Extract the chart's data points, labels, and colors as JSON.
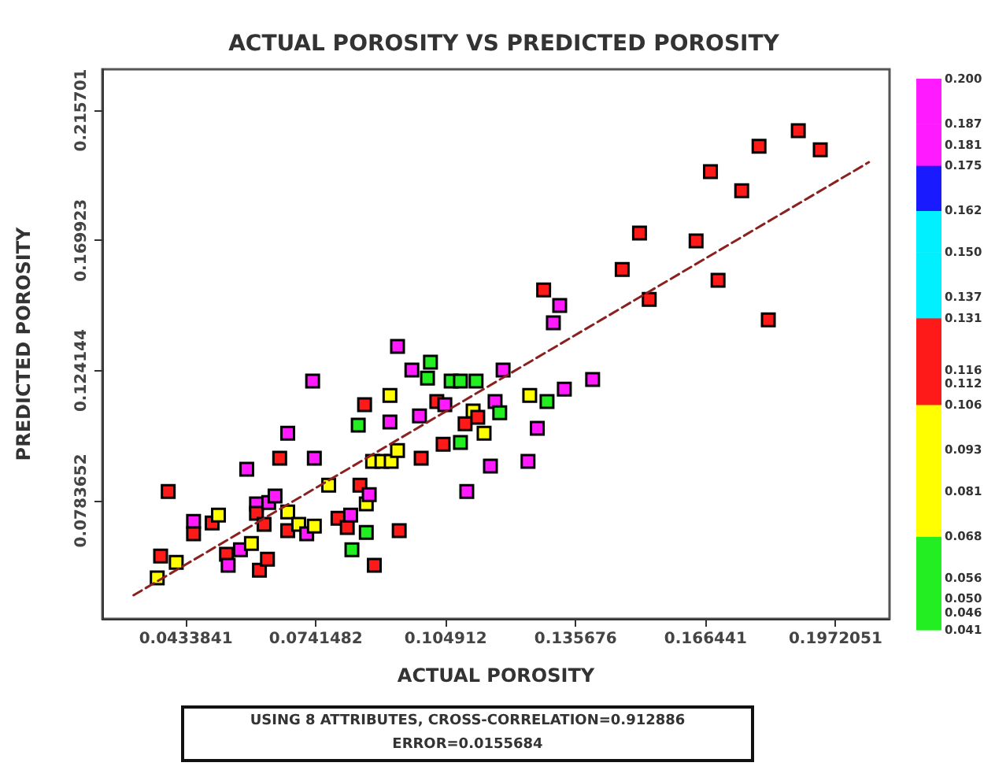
{
  "chart_data": {
    "type": "scatter",
    "title": "ACTUAL POROSITY VS PREDICTED POROSITY",
    "xlabel": "ACTUAL POROSITY",
    "ylabel": "PREDICTED POROSITY",
    "annotations": [
      "USING 8 ATTRIBUTES, CROSS-CORRELATION=0.912886",
      "ERROR=0.0155684"
    ],
    "xlim": [
      0.0236,
      0.21
    ],
    "xticks": [
      0.0433841,
      0.0741482,
      0.104912,
      0.135676,
      0.166441,
      0.1972051
    ],
    "ylim": [
      0.0368,
      0.2301
    ],
    "yticks": [
      0.0783652,
      0.124144,
      0.169923,
      0.215701
    ],
    "clim": [
      0.041,
      0.2
    ],
    "cticks": [
      0.041,
      0.046,
      {
        "value": 0.05,
        "label": "0.050"
      },
      0.056,
      0.068,
      0.081,
      0.093,
      0.106,
      0.112,
      0.116,
      0.131,
      0.137,
      {
        "value": 0.15,
        "label": "0.150"
      },
      0.162,
      0.175,
      0.181,
      0.187,
      {
        "value": 0.2,
        "label": "0.200"
      }
    ],
    "grid": false,
    "marker": "square",
    "series": [
      {
        "x": [
          0.0366,
          0.0411,
          0.0374,
          0.0392,
          0.0452,
          0.0452,
          0.0496,
          0.0511,
          0.053,
          0.0534,
          0.0563,
          0.0589,
          0.0578,
          0.0608,
          0.0627,
          0.0601,
          0.0601,
          0.0619,
          0.063,
          0.0645,
          0.0656,
          0.0675,
          0.0675,
          0.0675,
          0.0701,
          0.072,
          0.0738,
          0.0734,
          0.0738,
          0.0772,
          0.0794,
          0.0816,
          0.0824,
          0.0827,
          0.0842,
          0.0846,
          0.0857,
          0.0861,
          0.0861,
          0.0868,
          0.0876,
          0.088,
          0.0898,
          0.0917,
          0.0917,
          0.092,
          0.0935,
          0.0939,
          0.0935,
          0.0969,
          0.0987,
          0.0991,
          0.1006,
          0.1013,
          0.1028,
          0.1043,
          0.1047,
          0.1062,
          0.1084,
          0.1084,
          0.1099,
          0.1095,
          0.1114,
          0.1121,
          0.1125,
          0.114,
          0.1155,
          0.1166,
          0.1177,
          0.1185,
          0.1248,
          0.1266,
          0.1244,
          0.1289,
          0.133,
          0.1397,
          0.1281,
          0.1319,
          0.1304,
          0.1467,
          0.1508,
          0.1531,
          0.1642,
          0.1676,
          0.1694,
          0.175,
          0.1791,
          0.1813,
          0.1884,
          0.1936
        ],
        "values": [
          0.0512,
          0.0567,
          0.0589,
          0.0816,
          0.0711,
          0.0667,
          0.0705,
          0.0733,
          0.0595,
          0.0556,
          0.0611,
          0.0633,
          0.0894,
          0.0539,
          0.0578,
          0.0772,
          0.0739,
          0.07,
          0.0777,
          0.08,
          0.0933,
          0.1021,
          0.0744,
          0.0678,
          0.07,
          0.0667,
          0.0694,
          0.1204,
          0.0933,
          0.0838,
          0.0722,
          0.0689,
          0.0733,
          0.0611,
          0.1049,
          0.0838,
          0.1121,
          0.0672,
          0.0772,
          0.0805,
          0.0922,
          0.0556,
          0.0922,
          0.1154,
          0.106,
          0.0922,
          0.096,
          0.0678,
          0.1326,
          0.1243,
          0.1082,
          0.0933,
          0.1215,
          0.1271,
          0.1132,
          0.0982,
          0.1121,
          0.1204,
          0.1204,
          0.0988,
          0.0816,
          0.1054,
          0.1099,
          0.1204,
          0.1077,
          0.1021,
          0.0905,
          0.1132,
          0.1093,
          0.1243,
          0.1154,
          0.1038,
          0.0922,
          0.1132,
          0.1176,
          0.121,
          0.1525,
          0.147,
          0.1409,
          0.1597,
          0.1725,
          0.1492,
          0.1697,
          0.1941,
          0.1559,
          0.1874,
          0.203,
          0.142,
          0.2085,
          0.2018
        ],
        "colors": [
          "#ffff00",
          "#ffff00",
          "#ff1a1a",
          "#ff1a1a",
          "#ff1aff",
          "#ff1a1a",
          "#ff1a1a",
          "#ffff00",
          "#ff1a1a",
          "#ff1aff",
          "#ff1aff",
          "#ffff00",
          "#ff1aff",
          "#ff1a1a",
          "#ff1a1a",
          "#ff1aff",
          "#ff1a1a",
          "#ff1a1a",
          "#ff1aff",
          "#ff1aff",
          "#ff1a1a",
          "#ff1aff",
          "#ffff00",
          "#ff1a1a",
          "#ffff00",
          "#ff1aff",
          "#ffff00",
          "#ff1aff",
          "#ff1aff",
          "#ffff00",
          "#ff1a1a",
          "#ff1a1a",
          "#ff1aff",
          "#22ee22",
          "#22ee22",
          "#ff1a1a",
          "#ff1a1a",
          "#22ee22",
          "#ffff00",
          "#ff1aff",
          "#ffff00",
          "#ff1a1a",
          "#ffff00",
          "#ffff00",
          "#ff1aff",
          "#ffff00",
          "#ffff00",
          "#ff1a1a",
          "#ff1aff",
          "#ff1aff",
          "#ff1aff",
          "#ff1a1a",
          "#22ee22",
          "#22ee22",
          "#ff1a1a",
          "#ff1a1a",
          "#ff1aff",
          "#22ee22",
          "#22ee22",
          "#22ee22",
          "#ff1aff",
          "#ff1a1a",
          "#ffff00",
          "#22ee22",
          "#ff1a1a",
          "#ffff00",
          "#ff1aff",
          "#ff1aff",
          "#22ee22",
          "#ff1aff",
          "#ffff00",
          "#ff1aff",
          "#ff1aff",
          "#22ee22",
          "#ff1aff",
          "#ff1aff",
          "#ff1a1a",
          "#ff1aff",
          "#ff1aff",
          "#ff1a1a",
          "#ff1a1a",
          "#ff1a1a",
          "#ff1a1a",
          "#ff1a1a",
          "#ff1a1a",
          "#ff1a1a",
          "#ff1a1a",
          "#ff1a1a",
          "#ff1a1a",
          "#ff1a1a"
        ]
      },
      {
        "type": "line",
        "color": "#8b2020",
        "x": [
          0.031,
          0.2051
        ],
        "values": [
          0.0451,
          0.1974
        ],
        "marker": "none",
        "line_style": "dashed"
      }
    ]
  }
}
